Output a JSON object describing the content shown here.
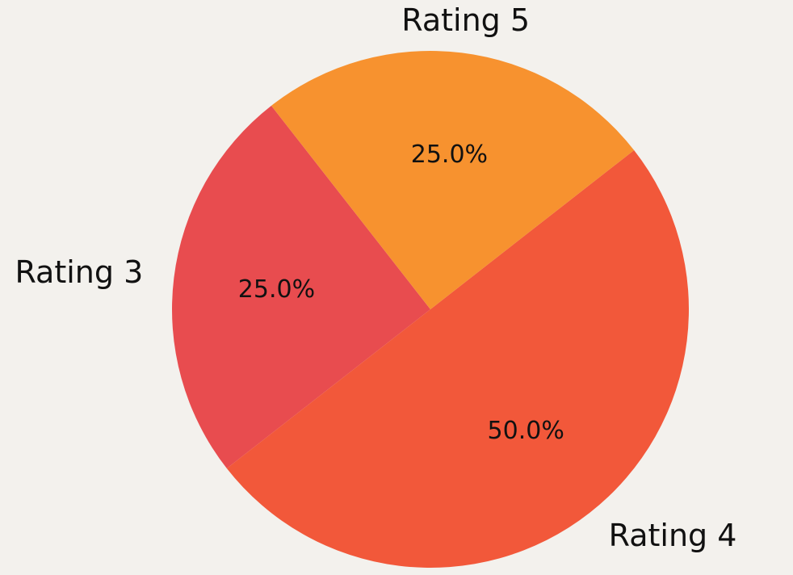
{
  "chart_data": {
    "type": "pie",
    "title": "",
    "slices": [
      {
        "label": "Rating 3",
        "value": 25.0,
        "pct_label": "25.0%",
        "color": "#e84c4f"
      },
      {
        "label": "Rating 4",
        "value": 50.0,
        "pct_label": "50.0%",
        "color": "#f2583a"
      },
      {
        "label": "Rating 5",
        "value": 25.0,
        "pct_label": "25.0%",
        "color": "#f7922f"
      }
    ],
    "legend": "none",
    "grid": false
  }
}
